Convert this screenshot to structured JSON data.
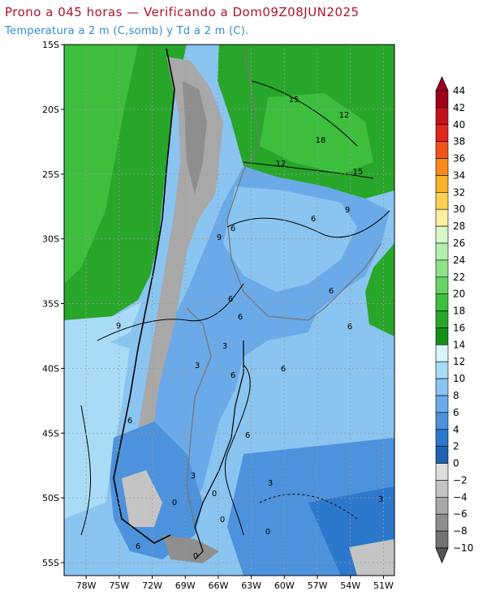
{
  "header": {
    "title": "Prono a 045 horas — Verificando a Dom09Z08JUN2025",
    "subtitle": "Temperatura a 2 m (C,somb) y Td a 2 m (C)."
  },
  "map": {
    "lon_range": [
      -80,
      -50
    ],
    "lat_range": [
      -56,
      -15
    ],
    "lon_ticks": [
      "78W",
      "75W",
      "72W",
      "69W",
      "66W",
      "63W",
      "60W",
      "57W",
      "54W",
      "51W"
    ],
    "lat_ticks": [
      "15S",
      "20S",
      "25S",
      "30S",
      "35S",
      "40S",
      "45S",
      "50S",
      "55S"
    ],
    "contour_labels": [
      "15",
      "12",
      "18",
      "12",
      "15",
      "9",
      "6",
      "9",
      "6",
      "6",
      "6",
      "6",
      "9",
      "3",
      "3",
      "6",
      "6",
      "6",
      "6",
      "0",
      "3",
      "6",
      "0",
      "3",
      "0",
      "6",
      "0",
      "3",
      "0"
    ]
  },
  "colorbar": {
    "labels": [
      "44",
      "42",
      "40",
      "38",
      "36",
      "34",
      "32",
      "30",
      "28",
      "26",
      "24",
      "22",
      "20",
      "18",
      "16",
      "14",
      "12",
      "10",
      "8",
      "6",
      "4",
      "2",
      "0",
      "−2",
      "−4",
      "−6",
      "−8",
      "−10"
    ],
    "colors": [
      "#a0001a",
      "#c4121b",
      "#e0261c",
      "#f25418",
      "#f78a1a",
      "#f9b02c",
      "#fcd154",
      "#fdeea0",
      "#d8f7c8",
      "#b5efb0",
      "#8fe28a",
      "#66d366",
      "#3dbf3d",
      "#27a62a",
      "#168f1a",
      "#d8f4fc",
      "#a9dbf7",
      "#8ac4f0",
      "#6aaae8",
      "#4c92dc",
      "#2c78cc",
      "#1e62b0",
      "#dddddd",
      "#c4c4c4",
      "#a8a8a8",
      "#8e8e8e",
      "#727272",
      "#555555"
    ]
  }
}
